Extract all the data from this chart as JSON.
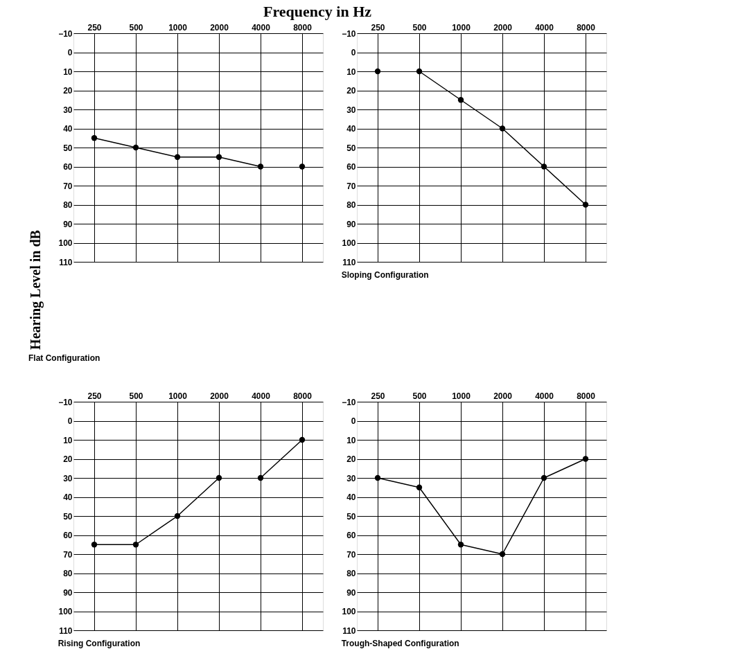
{
  "chart_data": [
    {
      "type": "line",
      "title": "Flat Configuration",
      "xlabel": "Frequency in Hz",
      "ylabel": "Hearing Level in dB",
      "categories": [
        "250",
        "500",
        "1000",
        "2000",
        "4000",
        "8000"
      ],
      "series": [
        {
          "color": "#000000",
          "values": [
            45,
            50,
            55,
            55,
            60,
            null
          ]
        },
        {
          "color": "#000000",
          "values": [
            null,
            null,
            null,
            null,
            null,
            60
          ]
        }
      ],
      "ylim": [
        110,
        -10
      ],
      "yticks": [
        -10,
        0,
        10,
        20,
        30,
        40,
        50,
        60,
        70,
        80,
        90,
        100,
        110
      ],
      "grid": true,
      "marker": "circle",
      "line_style": "solid",
      "legend": false
    },
    {
      "type": "line",
      "title": "Sloping Configuration",
      "categories": [
        "250",
        "500",
        "1000",
        "2000",
        "4000",
        "8000"
      ],
      "series": [
        {
          "color": "#000000",
          "values": [
            10,
            null,
            null,
            null,
            null,
            null
          ]
        },
        {
          "color": "#000000",
          "values": [
            null,
            10,
            25,
            40,
            60,
            80
          ]
        }
      ],
      "ylim": [
        110,
        -10
      ],
      "yticks": [
        -10,
        0,
        10,
        20,
        30,
        40,
        50,
        60,
        70,
        80,
        90,
        100,
        110
      ],
      "grid": true,
      "marker": "circle",
      "line_style": "solid",
      "legend": false
    },
    {
      "type": "line",
      "title": "Rising Configuration",
      "categories": [
        "250",
        "500",
        "1000",
        "2000",
        "4000",
        "8000"
      ],
      "series": [
        {
          "color": "#000000",
          "values": [
            65,
            65,
            50,
            30,
            null,
            null
          ]
        },
        {
          "color": "#000000",
          "values": [
            null,
            null,
            null,
            null,
            30,
            10
          ]
        }
      ],
      "ylim": [
        110,
        -10
      ],
      "yticks": [
        -10,
        0,
        10,
        20,
        30,
        40,
        50,
        60,
        70,
        80,
        90,
        100,
        110
      ],
      "grid": true,
      "marker": "circle",
      "line_style": "solid",
      "legend": false
    },
    {
      "type": "line",
      "title": "Trough-Shaped Configuration",
      "categories": [
        "250",
        "500",
        "1000",
        "2000",
        "4000",
        "8000"
      ],
      "series": [
        {
          "color": "#000000",
          "values": [
            30,
            35,
            65,
            70,
            30,
            20
          ]
        }
      ],
      "ylim": [
        110,
        -10
      ],
      "yticks": [
        -10,
        0,
        10,
        20,
        30,
        40,
        50,
        60,
        70,
        80,
        90,
        100,
        110
      ],
      "grid": true,
      "marker": "circle",
      "line_style": "solid",
      "legend": false
    }
  ]
}
